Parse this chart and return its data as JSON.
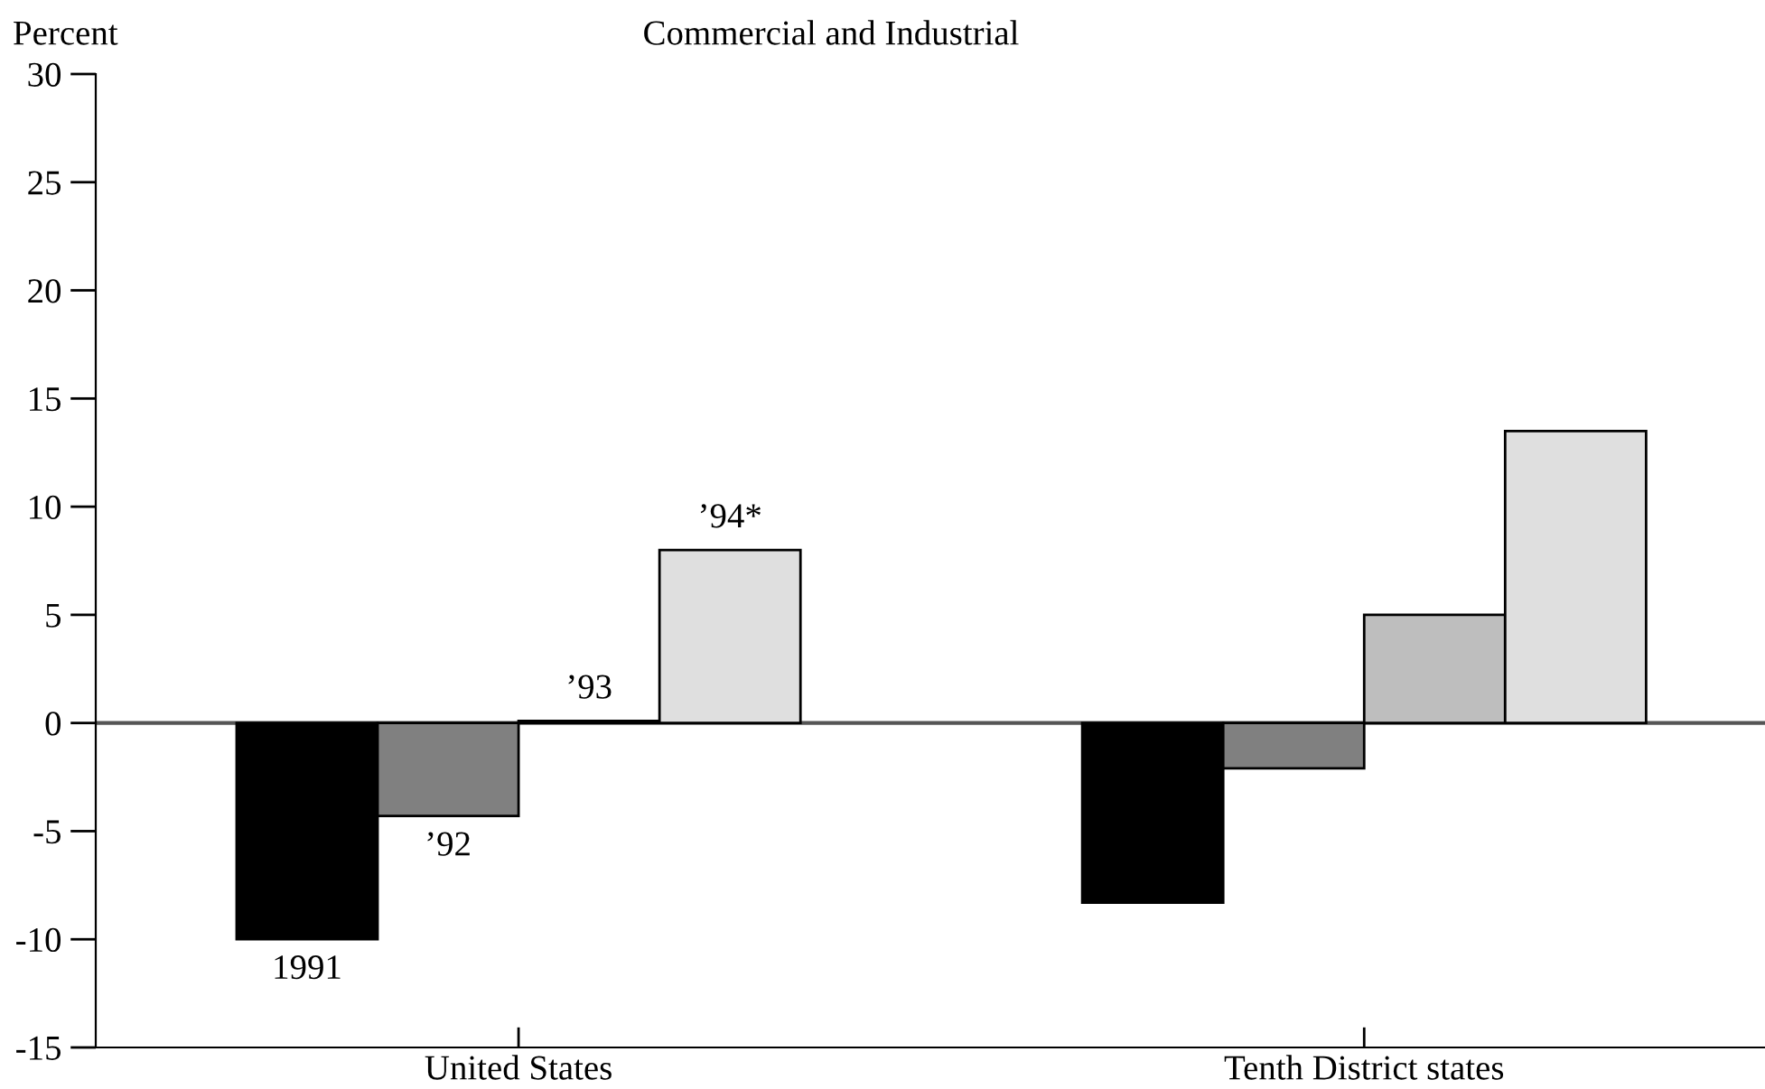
{
  "chart_data": {
    "type": "bar",
    "title": "Commercial and Industrial",
    "ylabel": "Percent",
    "categories": [
      "United States",
      "Tenth District states"
    ],
    "series": [
      {
        "name": "1991",
        "color": "#000000",
        "values": [
          -10.0,
          -8.3
        ]
      },
      {
        "name": "’92",
        "color": "#808080",
        "values": [
          -4.3,
          -2.1
        ]
      },
      {
        "name": "’93",
        "color": "#bebebe",
        "values": [
          0.1,
          5.0
        ]
      },
      {
        "name": "’94*",
        "color": "#dfdfdf",
        "values": [
          8.0,
          13.5
        ]
      }
    ],
    "ylim": [
      -15,
      30
    ],
    "yticks": [
      -15,
      -10,
      -5,
      0,
      5,
      10,
      15,
      20,
      25,
      30
    ],
    "ref_lines": [
      {
        "axis": "y",
        "value": 0,
        "color": "#555555"
      }
    ],
    "grid": false,
    "legend": false
  }
}
